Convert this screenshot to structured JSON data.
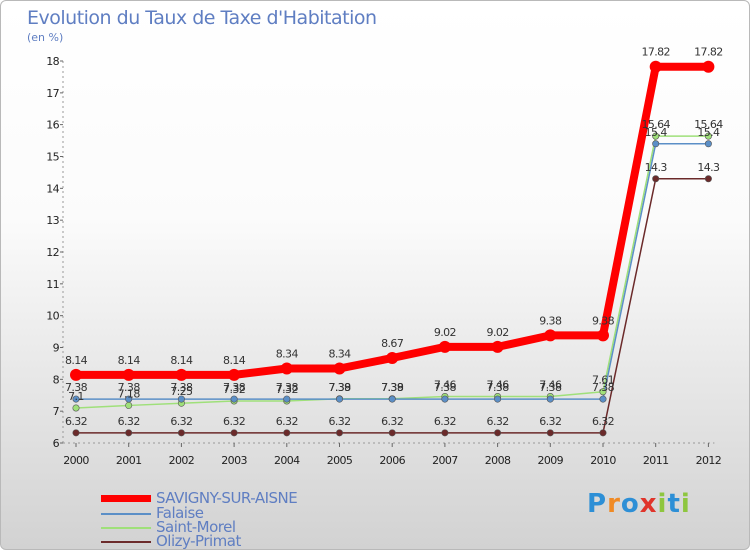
{
  "title": "Evolution du Taux de Taxe d'Habitation",
  "subtitle": "(en %)",
  "logo_text": "Proxiti",
  "logo_colors": [
    "#2d8fd6",
    "#f08a24",
    "#2d8fd6",
    "#e0342a",
    "#8ec63f",
    "#2d8fd6",
    "#8ec63f"
  ],
  "chart_data": {
    "type": "line",
    "x": [
      "2000",
      "2001",
      "2002",
      "2003",
      "2004",
      "2005",
      "2006",
      "2007",
      "2008",
      "2009",
      "2010",
      "2011",
      "2012"
    ],
    "ylim": [
      6,
      18
    ],
    "yticks": [
      "6",
      "7",
      "8",
      "9",
      "10",
      "11",
      "12",
      "13",
      "14",
      "15",
      "16",
      "17",
      "18"
    ],
    "grid": false,
    "legend_position": "bottom-left",
    "series": [
      {
        "name": "SAVIGNY-SUR-AISNE",
        "color": "#ff0000",
        "values": [
          8.14,
          8.14,
          8.14,
          8.14,
          8.34,
          8.34,
          8.67,
          9.02,
          9.02,
          9.38,
          9.38,
          17.82,
          17.82
        ],
        "labels": [
          "8.14",
          "8.14",
          "8.14",
          "8.14",
          "8.34",
          "8.34",
          "8.67",
          "9.02",
          "9.02",
          "9.38",
          "9.38",
          "17.82",
          "17.82"
        ]
      },
      {
        "name": "Falaise",
        "color": "#5b8fc7",
        "values": [
          7.38,
          7.38,
          7.38,
          7.38,
          7.38,
          7.38,
          7.38,
          7.38,
          7.38,
          7.38,
          7.38,
          15.4,
          15.4
        ],
        "labels": [
          "7.38",
          "7.38",
          "7.38",
          "7.38",
          "7.38",
          "7.38",
          "7.38",
          "7.38",
          "7.38",
          "7.38",
          "7.38",
          "15.4",
          "15.4"
        ]
      },
      {
        "name": "Saint-Morel",
        "color": "#9fe07a",
        "values": [
          7.1,
          7.18,
          7.25,
          7.32,
          7.32,
          7.39,
          7.39,
          7.46,
          7.46,
          7.46,
          7.61,
          15.64,
          15.64
        ],
        "labels": [
          "7.1",
          "7.18",
          "7.25",
          "7.32",
          "7.32",
          "7.39",
          "7.39",
          "7.46",
          "7.46",
          "7.46",
          "7.61",
          "15.64",
          "15.64"
        ]
      },
      {
        "name": "Olizy-Primat",
        "color": "#6b2a2a",
        "values": [
          6.32,
          6.32,
          6.32,
          6.32,
          6.32,
          6.32,
          6.32,
          6.32,
          6.32,
          6.32,
          6.32,
          14.3,
          14.3
        ],
        "labels": [
          "6.32",
          "6.32",
          "6.32",
          "6.32",
          "6.32",
          "6.32",
          "6.32",
          "6.32",
          "6.32",
          "6.32",
          "6.32",
          "14.3",
          "14.3"
        ]
      }
    ]
  }
}
